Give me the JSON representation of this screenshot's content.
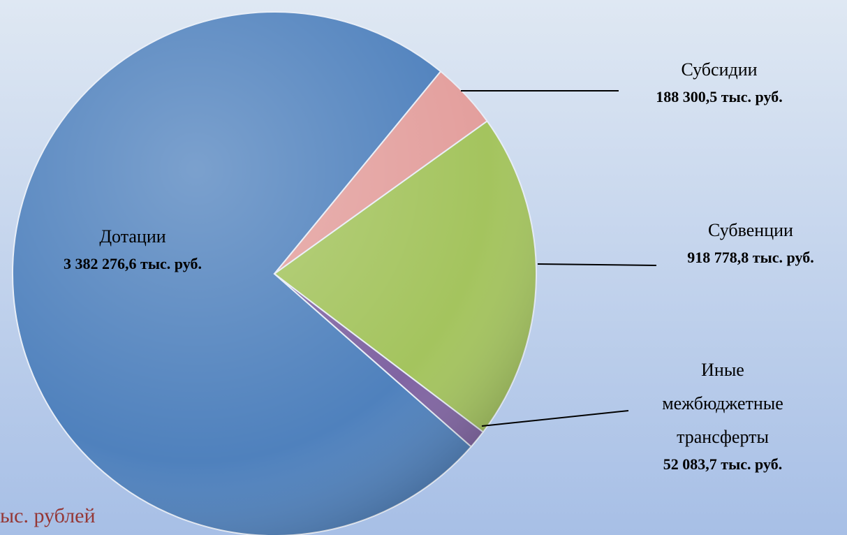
{
  "chart_data": {
    "type": "pie",
    "categories": [
      "Дотации",
      "Субсидии",
      "Субвенции",
      "Иные межбюджетные трансферты"
    ],
    "values": [
      3382276.6,
      188300.5,
      918778.8,
      52083.7
    ],
    "value_labels": [
      "3 382 276,6 тыс. руб.",
      "188 300,5 тыс. руб.",
      "918 778,8 тыс. руб.",
      "52 083,7 тыс. руб."
    ],
    "colors": [
      "#4f81bd",
      "#e39f9d",
      "#a4c45e",
      "#8064a2"
    ],
    "footnote": "ыс. рублей"
  }
}
